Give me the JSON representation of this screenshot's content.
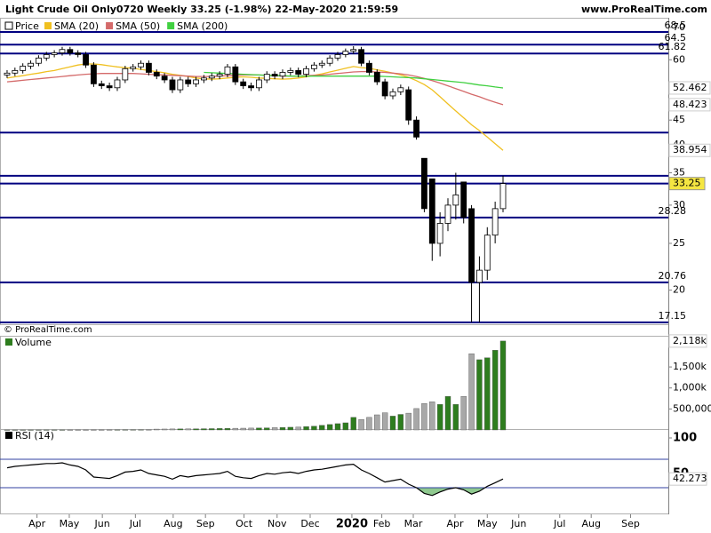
{
  "chart_data": [
    {
      "type": "candlestick",
      "title": "Light Crude Oil Only0720 Weekly 33.25 (-1.98%) 22-May-2020 21:59:59",
      "source": "www.ProRealTime.com",
      "copyright": "© ProRealTime.com",
      "price_name": "Price",
      "xlim": [
        -0.9,
        84.0
      ],
      "ylim": [
        17,
        73.3
      ],
      "log_scale": true,
      "yticks": [
        20,
        25,
        30,
        35,
        40,
        45,
        60,
        70
      ],
      "up_color": "#ffffff",
      "down_color": "#000000",
      "level_color": "#000080",
      "labeled_levels": [
        68.5,
        64.5,
        61.82,
        28.28,
        20.76,
        17.15
      ],
      "levels": [
        42.4,
        34.5
      ],
      "open": [
        55.8,
        56.3,
        57.0,
        58.2,
        59.0,
        60.5,
        61.5,
        62.0,
        63.0,
        62.0,
        61.5,
        58.5,
        53.5,
        53.0,
        52.5,
        54.5,
        57.5,
        58.0,
        59.0,
        56.5,
        55.5,
        54.5,
        52.0,
        54.5,
        53.5,
        54.5,
        55.0,
        55.5,
        56.0,
        58.0,
        54.0,
        53.0,
        52.5,
        54.5,
        56.0,
        55.5,
        56.5,
        57.0,
        56.0,
        57.5,
        58.5,
        59.0,
        60.5,
        61.5,
        62.5,
        63.0,
        59.0,
        56.5,
        54.0,
        50.5,
        51.5,
        52.0,
        45.0,
        37.5,
        34.0,
        25.0,
        27.5,
        30.0,
        33.5,
        29.5,
        20.76,
        22.0,
        26.0,
        29.5
      ],
      "high": [
        57.1,
        57.8,
        59.0,
        59.8,
        61.3,
        62.3,
        62.8,
        63.8,
        63.8,
        62.8,
        62.3,
        59.3,
        54.3,
        53.8,
        55.3,
        58.3,
        58.8,
        59.8,
        59.8,
        57.3,
        56.3,
        55.3,
        55.3,
        55.3,
        55.3,
        55.8,
        56.3,
        56.8,
        58.8,
        58.8,
        54.8,
        53.8,
        55.3,
        56.8,
        56.8,
        57.3,
        57.8,
        57.8,
        58.3,
        59.3,
        59.8,
        61.3,
        62.3,
        63.3,
        64.0,
        63.8,
        59.8,
        57.3,
        54.8,
        52.3,
        53.3,
        52.8,
        45.8,
        37.5,
        34.0,
        29.0,
        31.0,
        35.0,
        33.5,
        30.0,
        23.5,
        27.0,
        30.5,
        34.5
      ],
      "low": [
        55.0,
        55.5,
        56.2,
        57.4,
        58.2,
        59.7,
        60.7,
        61.2,
        61.2,
        60.7,
        57.7,
        52.7,
        52.2,
        51.7,
        51.7,
        53.7,
        56.7,
        57.2,
        55.7,
        54.7,
        53.7,
        51.2,
        51.2,
        52.7,
        52.7,
        53.7,
        54.2,
        54.7,
        55.2,
        53.2,
        52.2,
        51.7,
        51.7,
        53.7,
        54.7,
        54.7,
        55.7,
        55.2,
        55.2,
        56.7,
        57.7,
        58.2,
        59.7,
        60.7,
        61.7,
        58.2,
        55.7,
        53.2,
        49.7,
        49.7,
        50.7,
        44.0,
        41.0,
        29.0,
        23.0,
        23.5,
        26.5,
        28.0,
        27.5,
        17.15,
        17.15,
        21.0,
        25.0,
        29.0
      ],
      "close": [
        56.3,
        57.0,
        58.2,
        59.0,
        60.5,
        61.5,
        62.0,
        63.0,
        62.0,
        61.5,
        58.5,
        53.5,
        53.0,
        52.5,
        54.5,
        57.5,
        58.0,
        59.0,
        56.5,
        55.5,
        54.5,
        52.0,
        54.5,
        53.5,
        54.5,
        55.0,
        55.5,
        56.0,
        58.0,
        54.0,
        53.0,
        52.5,
        54.5,
        56.0,
        55.5,
        56.5,
        57.0,
        56.0,
        57.5,
        58.5,
        59.0,
        60.5,
        61.5,
        62.5,
        63.0,
        59.0,
        56.5,
        54.0,
        50.5,
        51.5,
        52.5,
        45.0,
        41.5,
        29.5,
        25.0,
        27.5,
        30.0,
        31.5,
        28.3,
        20.76,
        22.0,
        26.0,
        29.5,
        33.25
      ],
      "last_color": "#f5e642",
      "series": [
        {
          "name": "SMA (20)",
          "color": "#f0c020",
          "values": [
            55,
            55.3,
            55.6,
            56,
            56.3,
            56.7,
            57,
            57.5,
            58,
            58.5,
            58.8,
            58.8,
            58.6,
            58.3,
            58,
            57.8,
            57.6,
            57.3,
            57,
            56.7,
            56.4,
            56,
            55.7,
            55.4,
            55,
            54.8,
            54.7,
            54.8,
            55,
            55.2,
            55.3,
            55.2,
            55,
            54.9,
            54.8,
            54.7,
            54.8,
            55,
            55.3,
            55.7,
            56.1,
            56.6,
            57.1,
            57.6,
            58.1,
            57.8,
            57.6,
            57.2,
            56.8,
            56.3,
            55.8,
            55.2,
            54.3,
            53.3,
            52,
            50.3,
            48.6,
            47,
            45.5,
            44,
            42.8,
            41.5,
            40.2,
            38.954
          ]
        },
        {
          "name": "SMA (50)",
          "color": "#d46a6a",
          "values": [
            54,
            54.2,
            54.4,
            54.6,
            54.8,
            55,
            55.2,
            55.4,
            55.6,
            55.8,
            56,
            56.1,
            56.2,
            56.2,
            56.2,
            56.2,
            56.2,
            56.1,
            56,
            55.9,
            55.8,
            55.7,
            55.6,
            55.5,
            55.4,
            55.4,
            55.4,
            55.5,
            55.6,
            55.7,
            55.8,
            55.8,
            55.8,
            55.7,
            55.6,
            55.5,
            55.5,
            55.5,
            55.6,
            55.7,
            55.8,
            56,
            56.2,
            56.4,
            56.6,
            56.7,
            56.7,
            56.6,
            56.5,
            56.3,
            56.1,
            55.8,
            55.4,
            54.9,
            54.3,
            53.7,
            53,
            52.3,
            51.6,
            50.9,
            50.3,
            49.6,
            49,
            48.423
          ]
        },
        {
          "name": "SMA (200)",
          "color": "#40d040",
          "values": [
            null,
            null,
            null,
            null,
            null,
            null,
            null,
            null,
            null,
            null,
            null,
            null,
            null,
            null,
            null,
            null,
            null,
            null,
            null,
            null,
            null,
            null,
            null,
            null,
            null,
            56.5,
            56.4,
            56.3,
            56.2,
            56.1,
            56,
            55.9,
            55.8,
            55.7,
            55.6,
            55.6,
            55.5,
            55.5,
            55.5,
            55.5,
            55.5,
            55.5,
            55.5,
            55.5,
            55.5,
            55.5,
            55.5,
            55.5,
            55.4,
            55.3,
            55.2,
            55.1,
            55,
            54.8,
            54.6,
            54.4,
            54.2,
            54,
            53.8,
            53.5,
            53.2,
            53,
            52.7,
            52.462
          ]
        }
      ]
    },
    {
      "type": "bar",
      "name": "Volume",
      "xlim": [
        -0.9,
        84.0
      ],
      "ylim": [
        0,
        2200000
      ],
      "yticks": [
        {
          "value": 500000,
          "label": "500,000"
        },
        {
          "value": 1000000,
          "label": "1,000k"
        },
        {
          "value": 1500000,
          "label": "1,500k"
        }
      ],
      "up_color": "#2e7d1e",
      "down_color": "#a8a8a8",
      "values": [
        1000,
        1000,
        1000,
        1200,
        1200,
        1500,
        1500,
        1500,
        1800,
        2000,
        2000,
        2500,
        2500,
        3000,
        3000,
        3500,
        4000,
        4500,
        5000,
        20000,
        22000,
        24000,
        25000,
        27000,
        28000,
        30000,
        32000,
        35000,
        38000,
        40000,
        42000,
        45000,
        48000,
        50000,
        55000,
        60000,
        65000,
        70000,
        80000,
        90000,
        110000,
        130000,
        150000,
        170000,
        300000,
        250000,
        300000,
        360000,
        410000,
        330000,
        370000,
        400000,
        510000,
        630000,
        670000,
        610000,
        800000,
        610000,
        800000,
        1816000,
        1673000,
        1720000,
        1898000,
        2118000
      ],
      "last_label": "2,118k"
    },
    {
      "type": "line",
      "name": "RSI (14)",
      "xlim": [
        -0.9,
        84.0
      ],
      "ylim": [
        0,
        100
      ],
      "yticks": [
        50,
        100
      ],
      "bands": [
        30,
        70
      ],
      "band_color": "#3040a0",
      "color": "#000000",
      "oversold_color": "#8fc98f",
      "values": [
        58,
        60,
        61,
        62,
        63,
        64,
        64,
        65,
        62,
        60,
        55,
        45,
        44,
        43,
        47,
        52,
        53,
        55,
        50,
        48,
        46,
        42,
        47,
        45,
        47,
        48,
        49,
        50,
        53,
        46,
        44,
        43,
        47,
        50,
        49,
        51,
        52,
        50,
        53,
        55,
        56,
        58,
        60,
        62,
        63,
        55,
        50,
        44,
        38,
        40,
        42,
        35,
        30,
        22,
        19,
        24,
        28,
        30,
        27,
        21,
        25,
        32,
        37,
        42.273
      ],
      "xticks": [
        {
          "value": 3.8,
          "label": "Apr"
        },
        {
          "value": 7.9,
          "label": "May"
        },
        {
          "value": 12.1,
          "label": "Jun"
        },
        {
          "value": 16.3,
          "label": "Jul"
        },
        {
          "value": 21.1,
          "label": "Aug"
        },
        {
          "value": 25.2,
          "label": "Sep"
        },
        {
          "value": 30.1,
          "label": "Oct"
        },
        {
          "value": 34.3,
          "label": "Nov"
        },
        {
          "value": 38.5,
          "label": "Dec"
        },
        {
          "value": 43.8,
          "label": "2020"
        },
        {
          "value": 47.6,
          "label": "Feb"
        },
        {
          "value": 51.6,
          "label": "Mar"
        },
        {
          "value": 56.9,
          "label": "Apr"
        },
        {
          "value": 61.0,
          "label": "May"
        },
        {
          "value": 65.0,
          "label": "Jun"
        },
        {
          "value": 70.2,
          "label": "Jul"
        },
        {
          "value": 74.2,
          "label": "Aug"
        },
        {
          "value": 79.2,
          "label": "Sep"
        }
      ]
    }
  ]
}
